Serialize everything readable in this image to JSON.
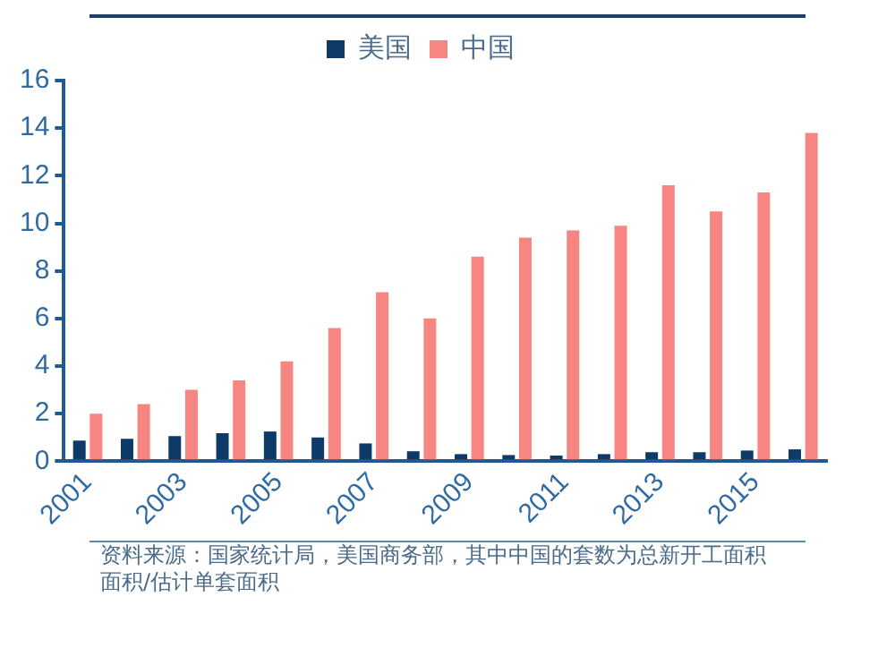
{
  "chart_data": {
    "type": "bar",
    "categories": [
      "2001",
      null,
      "2003",
      null,
      "2005",
      null,
      "2007",
      null,
      "2009",
      null,
      "2011",
      null,
      "2013",
      null,
      "2015",
      null
    ],
    "series": [
      {
        "name": "美国",
        "color": "#0d3a66",
        "values": [
          0.87,
          0.94,
          1.06,
          1.18,
          1.25,
          1.0,
          0.75,
          0.42,
          0.3,
          0.26,
          0.24,
          0.3,
          0.38,
          0.38,
          0.45,
          0.5
        ]
      },
      {
        "name": "中国",
        "color": "#f78582",
        "values": [
          2.0,
          2.4,
          3.0,
          3.4,
          4.2,
          5.6,
          7.1,
          6.0,
          8.6,
          9.4,
          9.7,
          9.9,
          11.6,
          10.5,
          11.3,
          13.8
        ]
      }
    ],
    "ylim": [
      0,
      16
    ],
    "yticks": [
      0,
      2,
      4,
      6,
      8,
      10,
      12,
      14,
      16
    ],
    "grid": false,
    "legend": "top",
    "annotations": [
      "资料来源：国家统计局，美国商务部，其中中国的套数为总新开工面积面积/估计单套面积"
    ]
  }
}
